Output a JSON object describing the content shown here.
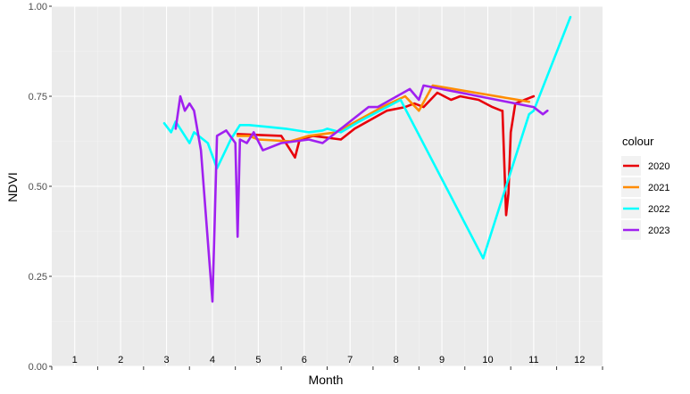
{
  "chart_data": {
    "type": "line",
    "xlabel": "Month",
    "ylabel": "NDVI",
    "xlim": [
      -0.5,
      11.5
    ],
    "ylim": [
      0,
      1
    ],
    "y_ticks": [
      "0.00",
      "0.25",
      "0.50",
      "0.75",
      "1.00"
    ],
    "y_tick_values": [
      0,
      0.25,
      0.5,
      0.75,
      1.0
    ],
    "month_labels": [
      "1",
      "2",
      "3",
      "4",
      "5",
      "6",
      "7",
      "8",
      "9",
      "10",
      "11",
      "12"
    ],
    "grid": true,
    "legend_title": "colour",
    "legend_position": "right",
    "series": [
      {
        "name": "2020",
        "color": "#e8000b",
        "x": [
          3.55,
          4.5,
          4.7,
          4.8,
          4.9,
          5.2,
          5.8,
          6.1,
          6.8,
          7.2,
          7.4,
          7.6,
          7.9,
          8.2,
          8.4,
          8.8,
          9.1,
          9.3,
          9.32,
          9.4,
          9.45,
          9.5,
          9.6,
          10.0
        ],
        "y": [
          0.645,
          0.64,
          0.6,
          0.58,
          0.63,
          0.64,
          0.63,
          0.66,
          0.71,
          0.72,
          0.73,
          0.72,
          0.76,
          0.74,
          0.75,
          0.74,
          0.72,
          0.71,
          0.71,
          0.42,
          0.48,
          0.65,
          0.73,
          0.75
        ]
      },
      {
        "name": "2021",
        "color": "#ff8c00",
        "x": [
          3.55,
          3.8,
          4.0,
          4.7,
          5.1,
          5.7,
          6.7,
          7.2,
          7.5,
          7.8,
          9.9
        ],
        "y": [
          0.64,
          0.64,
          0.63,
          0.625,
          0.64,
          0.65,
          0.72,
          0.75,
          0.71,
          0.78,
          0.735
        ]
      },
      {
        "name": "2022",
        "color": "#00ffff",
        "x": [
          1.95,
          2.1,
          2.2,
          2.3,
          2.5,
          2.6,
          2.7,
          2.9,
          3.1,
          3.4,
          3.6,
          3.8,
          4.2,
          4.6,
          5.1,
          5.4,
          5.5,
          5.8,
          6.2,
          7.1,
          8.9,
          9.9,
          10.0,
          10.8
        ],
        "y": [
          0.675,
          0.65,
          0.68,
          0.66,
          0.62,
          0.65,
          0.64,
          0.62,
          0.55,
          0.63,
          0.67,
          0.67,
          0.665,
          0.66,
          0.65,
          0.655,
          0.66,
          0.65,
          0.68,
          0.74,
          0.3,
          0.7,
          0.71,
          0.97
        ]
      },
      {
        "name": "2023",
        "color": "#a020f0",
        "x": [
          2.2,
          2.3,
          2.4,
          2.5,
          2.6,
          2.75,
          3.0,
          3.05,
          3.1,
          3.3,
          3.5,
          3.55,
          3.6,
          3.75,
          3.9,
          4.1,
          4.5,
          5.1,
          5.4,
          6.4,
          6.6,
          7.3,
          7.5,
          7.6,
          10.0,
          10.1,
          10.2,
          10.3
        ],
        "y": [
          0.66,
          0.75,
          0.71,
          0.73,
          0.71,
          0.6,
          0.18,
          0.4,
          0.64,
          0.655,
          0.62,
          0.36,
          0.63,
          0.62,
          0.65,
          0.6,
          0.62,
          0.63,
          0.62,
          0.72,
          0.72,
          0.77,
          0.74,
          0.78,
          0.72,
          0.71,
          0.7,
          0.71
        ]
      }
    ]
  }
}
